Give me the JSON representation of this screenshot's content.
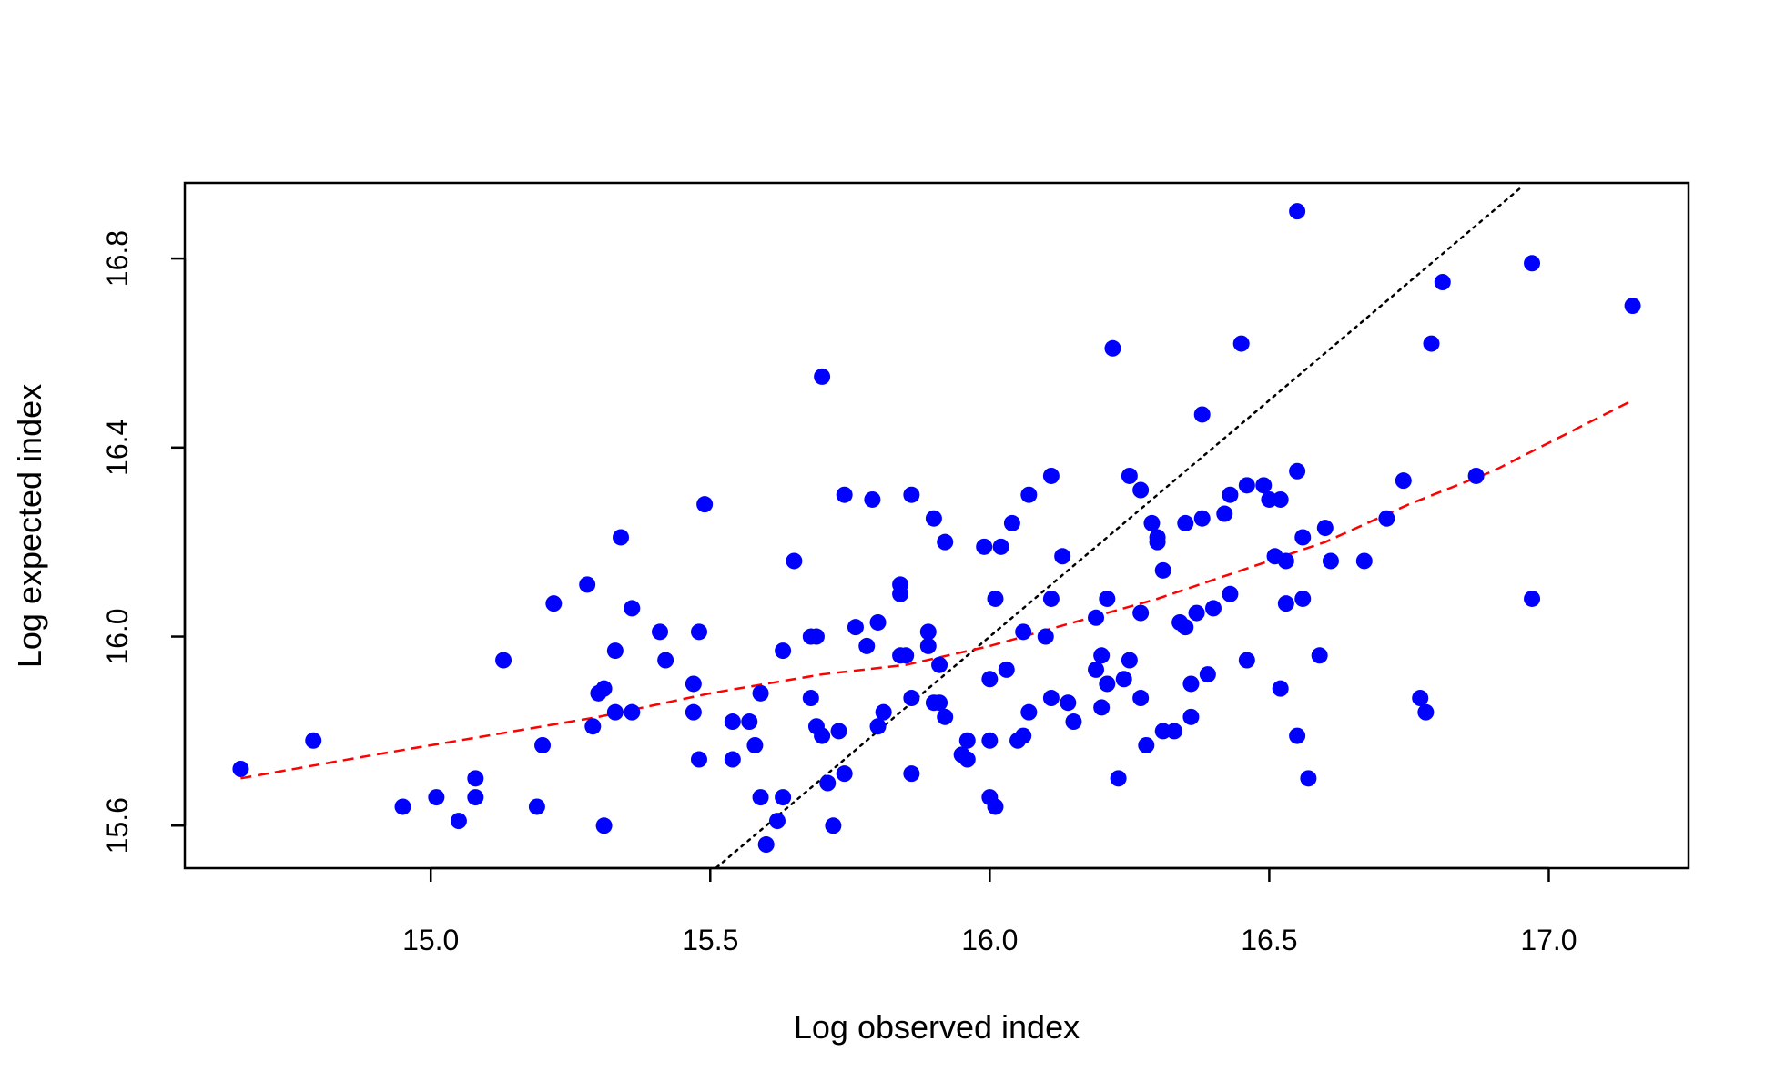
{
  "chart_data": {
    "type": "scatter",
    "xlabel": "Log observed index",
    "ylabel": "Log expected index",
    "xlim": [
      14.56,
      17.25
    ],
    "ylim": [
      15.51,
      16.96
    ],
    "x_ticks": [
      15.0,
      15.5,
      16.0,
      16.5,
      17.0
    ],
    "x_tick_labels": [
      "15.0",
      "15.5",
      "16.0",
      "16.5",
      "17.0"
    ],
    "y_ticks": [
      15.6,
      16.0,
      16.4,
      16.8
    ],
    "y_tick_labels": [
      "15.6",
      "16.0",
      "16.4",
      "16.8"
    ],
    "grid": false,
    "legend": "none",
    "colors": {
      "points": "#0000ff",
      "smooth_line": "#ff0000",
      "identity_line": "#000000"
    },
    "points": [
      [
        14.66,
        15.72
      ],
      [
        14.79,
        15.78
      ],
      [
        14.95,
        15.64
      ],
      [
        15.01,
        15.66
      ],
      [
        15.05,
        15.61
      ],
      [
        15.08,
        15.7
      ],
      [
        15.08,
        15.66
      ],
      [
        15.13,
        15.95
      ],
      [
        15.19,
        15.64
      ],
      [
        15.2,
        15.77
      ],
      [
        15.22,
        16.07
      ],
      [
        15.28,
        16.11
      ],
      [
        15.29,
        15.81
      ],
      [
        15.3,
        15.88
      ],
      [
        15.31,
        15.6
      ],
      [
        15.31,
        15.89
      ],
      [
        15.33,
        15.97
      ],
      [
        15.33,
        15.84
      ],
      [
        15.34,
        16.21
      ],
      [
        15.36,
        16.06
      ],
      [
        15.36,
        15.84
      ],
      [
        15.41,
        16.01
      ],
      [
        15.42,
        15.95
      ],
      [
        15.47,
        15.84
      ],
      [
        15.47,
        15.9
      ],
      [
        15.48,
        16.01
      ],
      [
        15.48,
        15.74
      ],
      [
        15.49,
        16.28
      ],
      [
        15.54,
        15.82
      ],
      [
        15.54,
        15.74
      ],
      [
        15.57,
        15.82
      ],
      [
        15.58,
        15.77
      ],
      [
        15.59,
        15.88
      ],
      [
        15.59,
        15.66
      ],
      [
        15.6,
        15.56
      ],
      [
        15.62,
        15.61
      ],
      [
        15.63,
        15.66
      ],
      [
        15.63,
        15.97
      ],
      [
        15.65,
        16.16
      ],
      [
        15.68,
        16.0
      ],
      [
        15.68,
        15.87
      ],
      [
        15.69,
        16.0
      ],
      [
        15.69,
        15.81
      ],
      [
        15.7,
        15.79
      ],
      [
        15.7,
        16.55
      ],
      [
        15.71,
        15.69
      ],
      [
        15.72,
        15.6
      ],
      [
        15.73,
        15.8
      ],
      [
        15.74,
        15.71
      ],
      [
        15.74,
        16.3
      ],
      [
        15.76,
        16.02
      ],
      [
        15.78,
        15.98
      ],
      [
        15.79,
        16.29
      ],
      [
        15.8,
        16.03
      ],
      [
        15.8,
        15.81
      ],
      [
        15.81,
        15.84
      ],
      [
        15.84,
        16.11
      ],
      [
        15.84,
        16.09
      ],
      [
        15.84,
        15.96
      ],
      [
        15.85,
        15.96
      ],
      [
        15.86,
        15.87
      ],
      [
        15.86,
        15.71
      ],
      [
        15.86,
        16.3
      ],
      [
        15.89,
        16.01
      ],
      [
        15.89,
        15.98
      ],
      [
        15.9,
        15.86
      ],
      [
        15.9,
        16.25
      ],
      [
        15.91,
        15.94
      ],
      [
        15.91,
        15.86
      ],
      [
        15.92,
        16.2
      ],
      [
        15.92,
        15.83
      ],
      [
        15.95,
        15.75
      ],
      [
        15.96,
        15.74
      ],
      [
        15.96,
        15.78
      ],
      [
        15.99,
        16.19
      ],
      [
        16.0,
        15.78
      ],
      [
        16.0,
        15.66
      ],
      [
        16.0,
        15.91
      ],
      [
        16.01,
        16.08
      ],
      [
        16.01,
        15.64
      ],
      [
        16.02,
        16.19
      ],
      [
        16.03,
        15.93
      ],
      [
        16.04,
        16.24
      ],
      [
        16.05,
        15.78
      ],
      [
        16.06,
        15.79
      ],
      [
        16.06,
        16.01
      ],
      [
        16.07,
        16.3
      ],
      [
        16.07,
        15.84
      ],
      [
        16.1,
        16.0
      ],
      [
        16.11,
        16.08
      ],
      [
        16.11,
        15.87
      ],
      [
        16.11,
        16.34
      ],
      [
        16.13,
        16.17
      ],
      [
        16.14,
        15.86
      ],
      [
        16.15,
        15.82
      ],
      [
        16.19,
        16.04
      ],
      [
        16.19,
        15.93
      ],
      [
        16.2,
        15.96
      ],
      [
        16.2,
        15.85
      ],
      [
        16.21,
        16.08
      ],
      [
        16.21,
        15.9
      ],
      [
        16.22,
        16.61
      ],
      [
        16.23,
        15.7
      ],
      [
        16.24,
        15.91
      ],
      [
        16.25,
        15.95
      ],
      [
        16.25,
        16.34
      ],
      [
        16.27,
        16.05
      ],
      [
        16.27,
        16.31
      ],
      [
        16.27,
        15.87
      ],
      [
        16.28,
        15.77
      ],
      [
        16.29,
        16.24
      ],
      [
        16.3,
        16.2
      ],
      [
        16.3,
        16.21
      ],
      [
        16.31,
        15.8
      ],
      [
        16.31,
        16.14
      ],
      [
        16.33,
        15.8
      ],
      [
        16.34,
        16.03
      ],
      [
        16.35,
        16.24
      ],
      [
        16.35,
        16.02
      ],
      [
        16.36,
        15.9
      ],
      [
        16.36,
        15.83
      ],
      [
        16.37,
        16.05
      ],
      [
        16.38,
        16.47
      ],
      [
        16.38,
        16.25
      ],
      [
        16.39,
        15.92
      ],
      [
        16.4,
        16.06
      ],
      [
        16.42,
        16.26
      ],
      [
        16.43,
        16.09
      ],
      [
        16.43,
        16.3
      ],
      [
        16.45,
        16.62
      ],
      [
        16.46,
        16.32
      ],
      [
        16.46,
        15.95
      ],
      [
        16.49,
        16.32
      ],
      [
        16.5,
        16.29
      ],
      [
        16.51,
        16.17
      ],
      [
        16.52,
        16.29
      ],
      [
        16.52,
        15.89
      ],
      [
        16.53,
        16.07
      ],
      [
        16.53,
        16.16
      ],
      [
        16.55,
        16.35
      ],
      [
        16.55,
        16.9
      ],
      [
        16.55,
        15.79
      ],
      [
        16.56,
        16.21
      ],
      [
        16.56,
        16.08
      ],
      [
        16.57,
        15.7
      ],
      [
        16.59,
        15.96
      ],
      [
        16.6,
        16.23
      ],
      [
        16.61,
        16.16
      ],
      [
        16.67,
        16.16
      ],
      [
        16.71,
        16.25
      ],
      [
        16.74,
        16.33
      ],
      [
        16.77,
        15.87
      ],
      [
        16.78,
        15.84
      ],
      [
        16.79,
        16.62
      ],
      [
        16.81,
        16.75
      ],
      [
        16.87,
        16.34
      ],
      [
        16.97,
        16.79
      ],
      [
        16.97,
        16.08
      ],
      [
        17.15,
        16.7
      ]
    ],
    "smooth_line": [
      [
        14.66,
        15.7
      ],
      [
        14.9,
        15.75
      ],
      [
        15.1,
        15.79
      ],
      [
        15.3,
        15.83
      ],
      [
        15.5,
        15.88
      ],
      [
        15.7,
        15.92
      ],
      [
        15.85,
        15.94
      ],
      [
        16.0,
        15.98
      ],
      [
        16.15,
        16.03
      ],
      [
        16.3,
        16.08
      ],
      [
        16.45,
        16.14
      ],
      [
        16.6,
        16.2
      ],
      [
        16.75,
        16.28
      ],
      [
        16.9,
        16.35
      ],
      [
        17.05,
        16.44
      ],
      [
        17.15,
        16.5
      ]
    ],
    "identity_line": [
      [
        15.5,
        15.5
      ],
      [
        16.95,
        16.95
      ]
    ]
  }
}
